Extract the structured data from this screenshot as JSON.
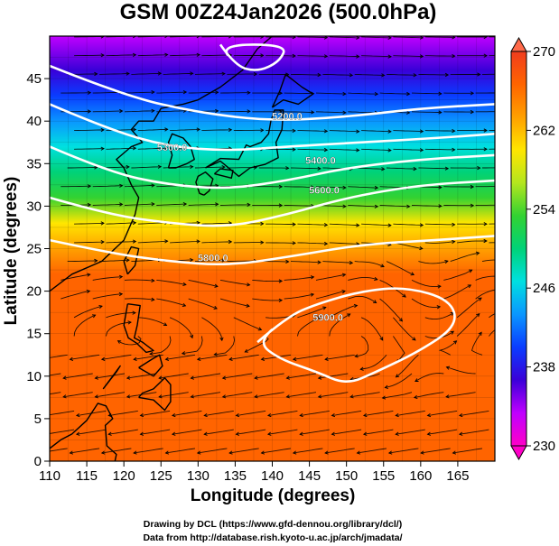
{
  "chart_data": {
    "type": "heatmap",
    "title": "GSM 00Z24Jan2026 (500.0hPa)",
    "xlabel": "Longitude (degrees)",
    "ylabel": "Latitude  (degrees)",
    "xlim": [
      110,
      170
    ],
    "ylim": [
      0,
      50
    ],
    "xticks": [
      "110",
      "115",
      "120",
      "125",
      "130",
      "135",
      "140",
      "145",
      "150",
      "155",
      "160",
      "165"
    ],
    "yticks": [
      "0",
      "5",
      "10",
      "15",
      "20",
      "25",
      "30",
      "35",
      "40",
      "45"
    ],
    "colorbar": {
      "range": [
        230,
        270
      ],
      "ticks": [
        "230",
        "238",
        "246",
        "254",
        "262",
        "270"
      ],
      "colors": [
        "#ff00c8",
        "#c000ff",
        "#3a00d8",
        "#0a3cff",
        "#0a96ff",
        "#00e0e0",
        "#00d278",
        "#32d232",
        "#b4e61e",
        "#ffe600",
        "#ffa000",
        "#ff6400",
        "#f03c1e"
      ]
    },
    "temperature_by_latitude": [
      {
        "lat": 0,
        "value": 268
      },
      {
        "lat": 10,
        "value": 268
      },
      {
        "lat": 18,
        "value": 267
      },
      {
        "lat": 22,
        "value": 266
      },
      {
        "lat": 25,
        "value": 264
      },
      {
        "lat": 28,
        "value": 259
      },
      {
        "lat": 31,
        "value": 254
      },
      {
        "lat": 34,
        "value": 250
      },
      {
        "lat": 37,
        "value": 246
      },
      {
        "lat": 40,
        "value": 242
      },
      {
        "lat": 43,
        "value": 239
      },
      {
        "lat": 46,
        "value": 237
      },
      {
        "lat": 50,
        "value": 234
      }
    ],
    "cold_core": {
      "lon": 137,
      "lat": 48.5,
      "value": 231
    },
    "contour_labels": [
      {
        "text": "5200.0",
        "lon": 142,
        "lat": 40.2
      },
      {
        "text": "5300.0",
        "lon": 126.5,
        "lat": 36.5
      },
      {
        "text": "5400.0",
        "lon": 146.5,
        "lat": 35
      },
      {
        "text": "5600.0",
        "lon": 147,
        "lat": 31.5
      },
      {
        "text": "5800.0",
        "lon": 132,
        "lat": 23.5
      },
      {
        "text": "5900.0",
        "lon": 147.5,
        "lat": 16.5
      }
    ],
    "contours": [
      {
        "level": "5200.0",
        "points": [
          [
            110,
            46.5
          ],
          [
            120,
            43
          ],
          [
            130,
            41
          ],
          [
            140,
            40
          ],
          [
            150,
            40.5
          ],
          [
            160,
            41.5
          ],
          [
            170,
            42
          ]
        ]
      },
      {
        "level": "5300.0",
        "points": [
          [
            110,
            42
          ],
          [
            118,
            39
          ],
          [
            126,
            37
          ],
          [
            134,
            36.5
          ],
          [
            142,
            37
          ],
          [
            152,
            37.5
          ],
          [
            162,
            38
          ],
          [
            170,
            38.5
          ]
        ]
      },
      {
        "level": "5400.0",
        "points": [
          [
            110,
            37
          ],
          [
            118,
            34
          ],
          [
            126,
            32.5
          ],
          [
            134,
            32
          ],
          [
            142,
            33
          ],
          [
            150,
            34.5
          ],
          [
            160,
            35.5
          ],
          [
            170,
            36
          ]
        ]
      },
      {
        "level": "5600.0",
        "points": [
          [
            110,
            31
          ],
          [
            118,
            29
          ],
          [
            126,
            28
          ],
          [
            134,
            27.5
          ],
          [
            142,
            29
          ],
          [
            150,
            31
          ],
          [
            160,
            32.5
          ],
          [
            170,
            33
          ]
        ]
      },
      {
        "level": "5800.0",
        "points": [
          [
            110,
            26
          ],
          [
            118,
            24.5
          ],
          [
            126,
            23.5
          ],
          [
            134,
            23
          ],
          [
            142,
            24
          ],
          [
            152,
            25.5
          ],
          [
            162,
            26
          ],
          [
            170,
            26.5
          ]
        ]
      }
    ],
    "closed_contours": [
      {
        "level": "5900.0",
        "points": [
          [
            138,
            14
          ],
          [
            142,
            17
          ],
          [
            146,
            18.5
          ],
          [
            152,
            20
          ],
          [
            158,
            20.5
          ],
          [
            164,
            19
          ],
          [
            165,
            16
          ],
          [
            160,
            13
          ],
          [
            154,
            10.5
          ],
          [
            150,
            9
          ],
          [
            146,
            10.5
          ],
          [
            141,
            12
          ]
        ]
      },
      {
        "level": "5200.0",
        "points": [
          [
            133,
            49
          ],
          [
            135,
            46.5
          ],
          [
            138,
            45.8
          ],
          [
            141,
            47
          ],
          [
            142,
            49
          ]
        ]
      }
    ],
    "grid": true,
    "coastline": "East Asia and the western Pacific (Japan, Korea, China coast, Taiwan, Philippines)",
    "credits": [
      "Drawing by DCL (https://www.gfd-dennou.org/library/dcl/)",
      "Data from http://database.rish.kyoto-u.ac.jp/arch/jmadata/"
    ]
  }
}
